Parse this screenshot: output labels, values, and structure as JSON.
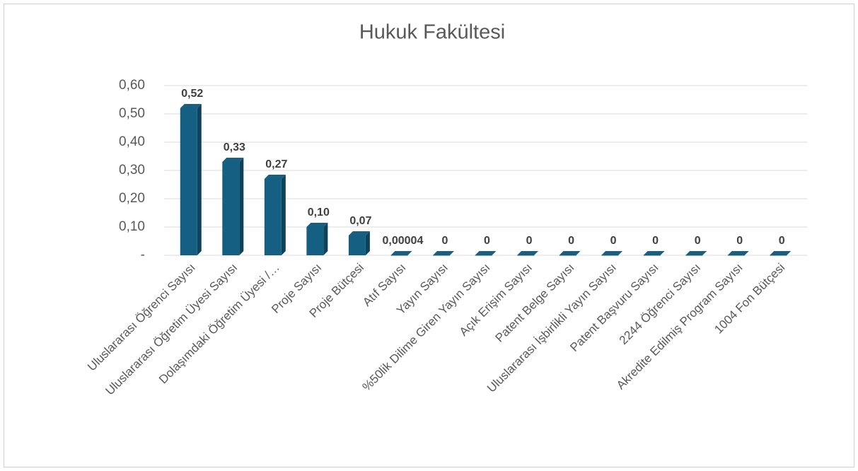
{
  "chart_data": {
    "type": "bar",
    "title": "Hukuk Fakültesi",
    "categories": [
      "Uluslararası Öğrenci Sayısı",
      "Uluslararası Öğretim Üyesi Sayısı",
      "Dolaşımdaki Öğretim Üyesi /…",
      "Proje Sayısı",
      "Proje Bütçesi",
      "Atıf Sayısı",
      "Yayın Sayısı",
      "%50lik Dilime Giren Yayın Sayısı",
      "Açık Erişim Sayısı",
      "Patent Belge Sayısı",
      "Uluslararası İşbirlikli Yayın Sayısı",
      "Patent Başvuru Sayısı",
      "2244 Öğrenci Sayısı",
      "Akredite Edilmiş Program Sayısı",
      "1004 Fon Bütçesi"
    ],
    "values": [
      0.52,
      0.33,
      0.27,
      0.1,
      0.07,
      4e-05,
      0,
      0,
      0,
      0,
      0,
      0,
      0,
      0,
      0
    ],
    "value_labels": [
      "0,52",
      "0,33",
      "0,27",
      "0,10",
      "0,07",
      "0,00004",
      "0",
      "0",
      "0",
      "0",
      "0",
      "0",
      "0",
      "0",
      "0"
    ],
    "color": "#156082",
    "ylim": [
      0,
      0.6
    ],
    "yticks": [
      {
        "value": 0,
        "label": "-"
      },
      {
        "value": 0.1,
        "label": "0,10"
      },
      {
        "value": 0.2,
        "label": "0,20"
      },
      {
        "value": 0.3,
        "label": "0,30"
      },
      {
        "value": 0.4,
        "label": "0,40"
      },
      {
        "value": 0.5,
        "label": "0,50"
      },
      {
        "value": 0.6,
        "label": "0,60"
      }
    ],
    "grid": true
  }
}
